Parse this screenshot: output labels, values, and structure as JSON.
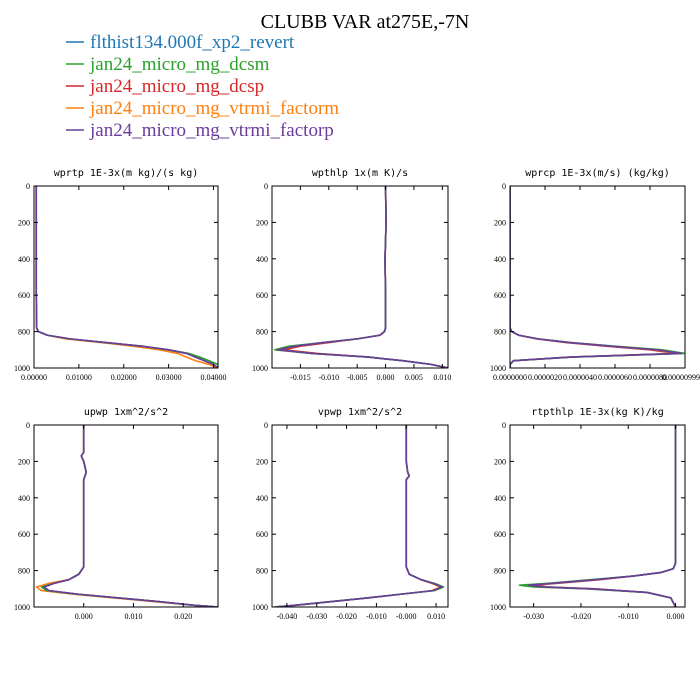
{
  "figure": {
    "title": "CLUBB VAR at275E,-7N",
    "legend": [
      {
        "label": "flthist134.000f_xp2_revert",
        "color": "#1f77b4"
      },
      {
        "label": "jan24_micro_mg_dcsm",
        "color": "#2ca02c"
      },
      {
        "label": "jan24_micro_mg_dcsp",
        "color": "#d62728"
      },
      {
        "label": "jan24_micro_mg_vtrmi_factorm",
        "color": "#ff7f0e"
      },
      {
        "label": "jan24_micro_mg_vtrmi_factorp",
        "color": "#6b3d9a"
      }
    ]
  },
  "chart_data": [
    {
      "type": "line",
      "title": "wprtp  1E-3x(m kg)/(s kg)",
      "xlim": [
        0,
        0.041
      ],
      "ylim": [
        1000,
        0
      ],
      "xticks": [
        0,
        0.01,
        0.02,
        0.03,
        0.04
      ],
      "xtick_labels": [
        "0.00000",
        "0.01000",
        "0.02000",
        "0.03000",
        "0.04000"
      ],
      "yticks": [
        0,
        200,
        400,
        600,
        800,
        1000
      ],
      "y": [
        0,
        200,
        400,
        600,
        780,
        800,
        820,
        840,
        860,
        880,
        900,
        920,
        940,
        960,
        980,
        1000
      ],
      "series": [
        {
          "values": [
            0.0005,
            0.0005,
            0.0005,
            0.0005,
            0.0006,
            0.001,
            0.003,
            0.008,
            0.016,
            0.024,
            0.03,
            0.034,
            0.036,
            0.038,
            0.04,
            0.041
          ]
        },
        {
          "values": [
            0.0005,
            0.0005,
            0.0005,
            0.0005,
            0.0006,
            0.001,
            0.003,
            0.008,
            0.016,
            0.024,
            0.03,
            0.0345,
            0.037,
            0.039,
            0.041,
            0.041
          ]
        },
        {
          "values": [
            0.0005,
            0.0005,
            0.0005,
            0.0005,
            0.0006,
            0.001,
            0.003,
            0.008,
            0.016,
            0.024,
            0.03,
            0.034,
            0.036,
            0.038,
            0.04,
            0.041
          ]
        },
        {
          "values": [
            0.0005,
            0.0005,
            0.0005,
            0.0005,
            0.0006,
            0.001,
            0.003,
            0.007,
            0.015,
            0.022,
            0.028,
            0.032,
            0.034,
            0.036,
            0.039,
            0.041
          ]
        },
        {
          "values": [
            0.0005,
            0.0005,
            0.0005,
            0.0005,
            0.0006,
            0.001,
            0.003,
            0.008,
            0.016,
            0.024,
            0.03,
            0.034,
            0.036,
            0.038,
            0.04,
            0.041
          ]
        }
      ]
    },
    {
      "type": "line",
      "title": "wpthlp  1x(m K)/s",
      "xlim": [
        -0.02,
        0.011
      ],
      "ylim": [
        1000,
        0
      ],
      "xticks": [
        -0.015,
        -0.01,
        -0.005,
        0,
        0.005,
        0.01
      ],
      "xtick_labels": [
        "-0.015",
        "-0.010",
        "-0.005",
        "0.000",
        "0.005",
        "0.010"
      ],
      "yticks": [
        0,
        200,
        400,
        600,
        800,
        1000
      ],
      "y": [
        0,
        200,
        400,
        600,
        780,
        800,
        820,
        840,
        860,
        880,
        900,
        920,
        940,
        960,
        980,
        1000
      ],
      "series": [
        {
          "values": [
            0.0,
            0.0001,
            -0.0001,
            0.0,
            0.0,
            -0.0002,
            -0.001,
            -0.005,
            -0.011,
            -0.016,
            -0.019,
            -0.013,
            -0.003,
            0.003,
            0.008,
            0.011
          ]
        },
        {
          "values": [
            0.0,
            0.0001,
            -0.0001,
            0.0,
            0.0,
            -0.0002,
            -0.001,
            -0.005,
            -0.011,
            -0.017,
            -0.0195,
            -0.013,
            -0.003,
            0.003,
            0.008,
            0.011
          ]
        },
        {
          "values": [
            0.0,
            0.0001,
            -0.0001,
            0.0,
            0.0,
            -0.0002,
            -0.001,
            -0.005,
            -0.01,
            -0.015,
            -0.018,
            -0.012,
            -0.003,
            0.003,
            0.008,
            0.011
          ]
        },
        {
          "values": [
            0.0,
            0.0001,
            -0.0001,
            0.0,
            0.0,
            -0.0002,
            -0.001,
            -0.005,
            -0.011,
            -0.016,
            -0.019,
            -0.013,
            -0.003,
            0.003,
            0.008,
            0.011
          ]
        },
        {
          "values": [
            0.0,
            0.0001,
            -0.0001,
            0.0,
            0.0,
            -0.0002,
            -0.001,
            -0.005,
            -0.011,
            -0.016,
            -0.019,
            -0.013,
            -0.003,
            0.003,
            0.008,
            0.011
          ]
        }
      ]
    },
    {
      "type": "line",
      "title": "wprcp  1E-3x(m/s) (kg/kg)",
      "xlim": [
        0,
        1e-05
      ],
      "ylim": [
        1000,
        0
      ],
      "xticks": [
        0,
        2e-06,
        4e-06,
        6e-06,
        8e-06,
        1e-05
      ],
      "xtick_labels": [
        "0.0000000",
        "0.0000020",
        "0.0000040",
        "0.0000060",
        "0.0000080",
        "0.0000099999"
      ],
      "yticks": [
        0,
        200,
        400,
        600,
        800,
        1000
      ],
      "y": [
        0,
        200,
        400,
        600,
        780,
        800,
        820,
        840,
        860,
        880,
        900,
        920,
        940,
        960,
        980,
        1000
      ],
      "series": [
        {
          "values": [
            0,
            0,
            0,
            0,
            0,
            1e-07,
            5e-07,
            1.6e-06,
            3.4e-06,
            5.8e-06,
            8.4e-06,
            9.8e-06,
            3.5e-06,
            2e-07,
            0,
            0
          ]
        },
        {
          "values": [
            0,
            0,
            0,
            0,
            0,
            1e-07,
            5e-07,
            1.6e-06,
            3.5e-06,
            6e-06,
            8.7e-06,
            1e-05,
            3.6e-06,
            2e-07,
            0,
            0
          ]
        },
        {
          "values": [
            0,
            0,
            0,
            0,
            0,
            1e-07,
            5e-07,
            1.5e-06,
            3.2e-06,
            5.5e-06,
            8e-06,
            9.5e-06,
            3.4e-06,
            2e-07,
            0,
            0
          ]
        },
        {
          "values": [
            0,
            0,
            0,
            0,
            0,
            1e-07,
            5e-07,
            1.6e-06,
            3.4e-06,
            5.8e-06,
            8.3e-06,
            9.6e-06,
            3.4e-06,
            2e-07,
            0,
            0
          ]
        },
        {
          "values": [
            0,
            0,
            0,
            0,
            0,
            1e-07,
            5e-07,
            1.6e-06,
            3.4e-06,
            5.8e-06,
            8.4e-06,
            9.8e-06,
            3.5e-06,
            2e-07,
            0,
            0
          ]
        }
      ]
    },
    {
      "type": "line",
      "title": "upwp  1xm^2/s^2",
      "xlim": [
        -0.01,
        0.027
      ],
      "ylim": [
        1000,
        0
      ],
      "xticks": [
        0,
        0.01,
        0.02
      ],
      "xtick_labels": [
        "0.000",
        "0.010",
        "0.020"
      ],
      "yticks": [
        0,
        200,
        400,
        600,
        800,
        1000
      ],
      "y": [
        0,
        150,
        170,
        200,
        260,
        300,
        400,
        600,
        780,
        820,
        850,
        870,
        890,
        910,
        930,
        950,
        970,
        990,
        1000
      ],
      "series": [
        {
          "values": [
            0,
            0,
            -0.0005,
            0,
            0.0005,
            0,
            0,
            0,
            0,
            -0.001,
            -0.003,
            -0.006,
            -0.008,
            -0.007,
            -0.001,
            0.007,
            0.015,
            0.022,
            0.027
          ]
        },
        {
          "values": [
            0,
            0,
            -0.0005,
            0,
            0.0005,
            0,
            0,
            0,
            0,
            -0.001,
            -0.003,
            -0.006,
            -0.0085,
            -0.0075,
            -0.0015,
            0.007,
            0.015,
            0.022,
            0.027
          ]
        },
        {
          "values": [
            0,
            0,
            -0.0005,
            0,
            0.0005,
            0,
            0,
            0,
            0,
            -0.001,
            -0.003,
            -0.006,
            -0.008,
            -0.007,
            -0.001,
            0.007,
            0.015,
            0.022,
            0.027
          ]
        },
        {
          "values": [
            0,
            0,
            -0.0005,
            0,
            0.0005,
            0,
            0,
            0,
            0,
            -0.001,
            -0.003,
            -0.007,
            -0.0095,
            -0.0085,
            -0.002,
            0.006,
            0.014,
            0.022,
            0.027
          ]
        },
        {
          "values": [
            0,
            0,
            -0.0005,
            0,
            0.0005,
            0,
            0,
            0,
            0,
            -0.001,
            -0.003,
            -0.006,
            -0.008,
            -0.007,
            -0.001,
            0.007,
            0.015,
            0.022,
            0.027
          ]
        }
      ]
    },
    {
      "type": "line",
      "title": "vpwp  1xm^2/s^2",
      "xlim": [
        -0.045,
        0.014
      ],
      "ylim": [
        1000,
        0
      ],
      "xticks": [
        -0.04,
        -0.03,
        -0.02,
        -0.01,
        0,
        0.01
      ],
      "xtick_labels": [
        "-0.040",
        "-0.030",
        "-0.020",
        "-0.010",
        "-0.000",
        "0.010"
      ],
      "yticks": [
        0,
        200,
        400,
        600,
        800,
        1000
      ],
      "y": [
        0,
        180,
        200,
        260,
        280,
        300,
        400,
        600,
        780,
        820,
        850,
        870,
        890,
        910,
        930,
        950,
        970,
        990,
        1000
      ],
      "series": [
        {
          "values": [
            0,
            0,
            0,
            0.0005,
            0.001,
            0,
            0,
            0,
            0,
            0.001,
            0.005,
            0.009,
            0.012,
            0.009,
            -0.002,
            -0.013,
            -0.025,
            -0.037,
            -0.044
          ]
        },
        {
          "values": [
            0,
            0,
            0,
            0.0005,
            0.001,
            0,
            0,
            0,
            0,
            0.001,
            0.005,
            0.0095,
            0.0125,
            0.0095,
            -0.002,
            -0.013,
            -0.025,
            -0.037,
            -0.044
          ]
        },
        {
          "values": [
            0,
            0,
            0,
            0.0005,
            0.001,
            0,
            0,
            0,
            0,
            0.001,
            0.005,
            0.009,
            0.012,
            0.009,
            -0.002,
            -0.013,
            -0.025,
            -0.037,
            -0.044
          ]
        },
        {
          "values": [
            0,
            0,
            0,
            0.0005,
            0.001,
            0,
            0,
            0,
            0,
            0.001,
            0.005,
            0.0085,
            0.0115,
            0.0085,
            -0.002,
            -0.013,
            -0.025,
            -0.037,
            -0.044
          ]
        },
        {
          "values": [
            0,
            0,
            0,
            0.0005,
            0.001,
            0,
            0,
            0,
            0,
            0.001,
            0.005,
            0.009,
            0.012,
            0.009,
            -0.002,
            -0.013,
            -0.025,
            -0.037,
            -0.044
          ]
        }
      ]
    },
    {
      "type": "line",
      "title": "rtpthlp  1E-3x(kg K)/kg",
      "xlim": [
        -0.035,
        0.002
      ],
      "ylim": [
        1000,
        0
      ],
      "xticks": [
        -0.03,
        -0.02,
        -0.01,
        0
      ],
      "xtick_labels": [
        "-0.030",
        "-0.020",
        "-0.010",
        "0.000"
      ],
      "yticks": [
        0,
        200,
        400,
        600,
        800,
        1000
      ],
      "y": [
        0,
        200,
        400,
        600,
        760,
        790,
        810,
        830,
        850,
        870,
        880,
        890,
        900,
        920,
        950,
        1000
      ],
      "series": [
        {
          "values": [
            0,
            0,
            0,
            0,
            0,
            -0.0005,
            -0.003,
            -0.009,
            -0.017,
            -0.026,
            -0.031,
            -0.028,
            -0.018,
            -0.006,
            -0.001,
            0
          ]
        },
        {
          "values": [
            0,
            0,
            0,
            0,
            0,
            -0.0005,
            -0.003,
            -0.009,
            -0.018,
            -0.027,
            -0.033,
            -0.03,
            -0.019,
            -0.006,
            -0.001,
            0
          ]
        },
        {
          "values": [
            0,
            0,
            0,
            0,
            0,
            -0.0005,
            -0.003,
            -0.009,
            -0.016,
            -0.025,
            -0.03,
            -0.027,
            -0.017,
            -0.006,
            -0.001,
            0
          ]
        },
        {
          "values": [
            0,
            0,
            0,
            0,
            0,
            -0.0005,
            -0.003,
            -0.009,
            -0.017,
            -0.026,
            -0.031,
            -0.028,
            -0.018,
            -0.006,
            -0.001,
            0
          ]
        },
        {
          "values": [
            0,
            0,
            0,
            0,
            0,
            -0.0005,
            -0.003,
            -0.009,
            -0.017,
            -0.026,
            -0.031,
            -0.028,
            -0.018,
            -0.006,
            -0.001,
            0
          ]
        }
      ]
    }
  ]
}
